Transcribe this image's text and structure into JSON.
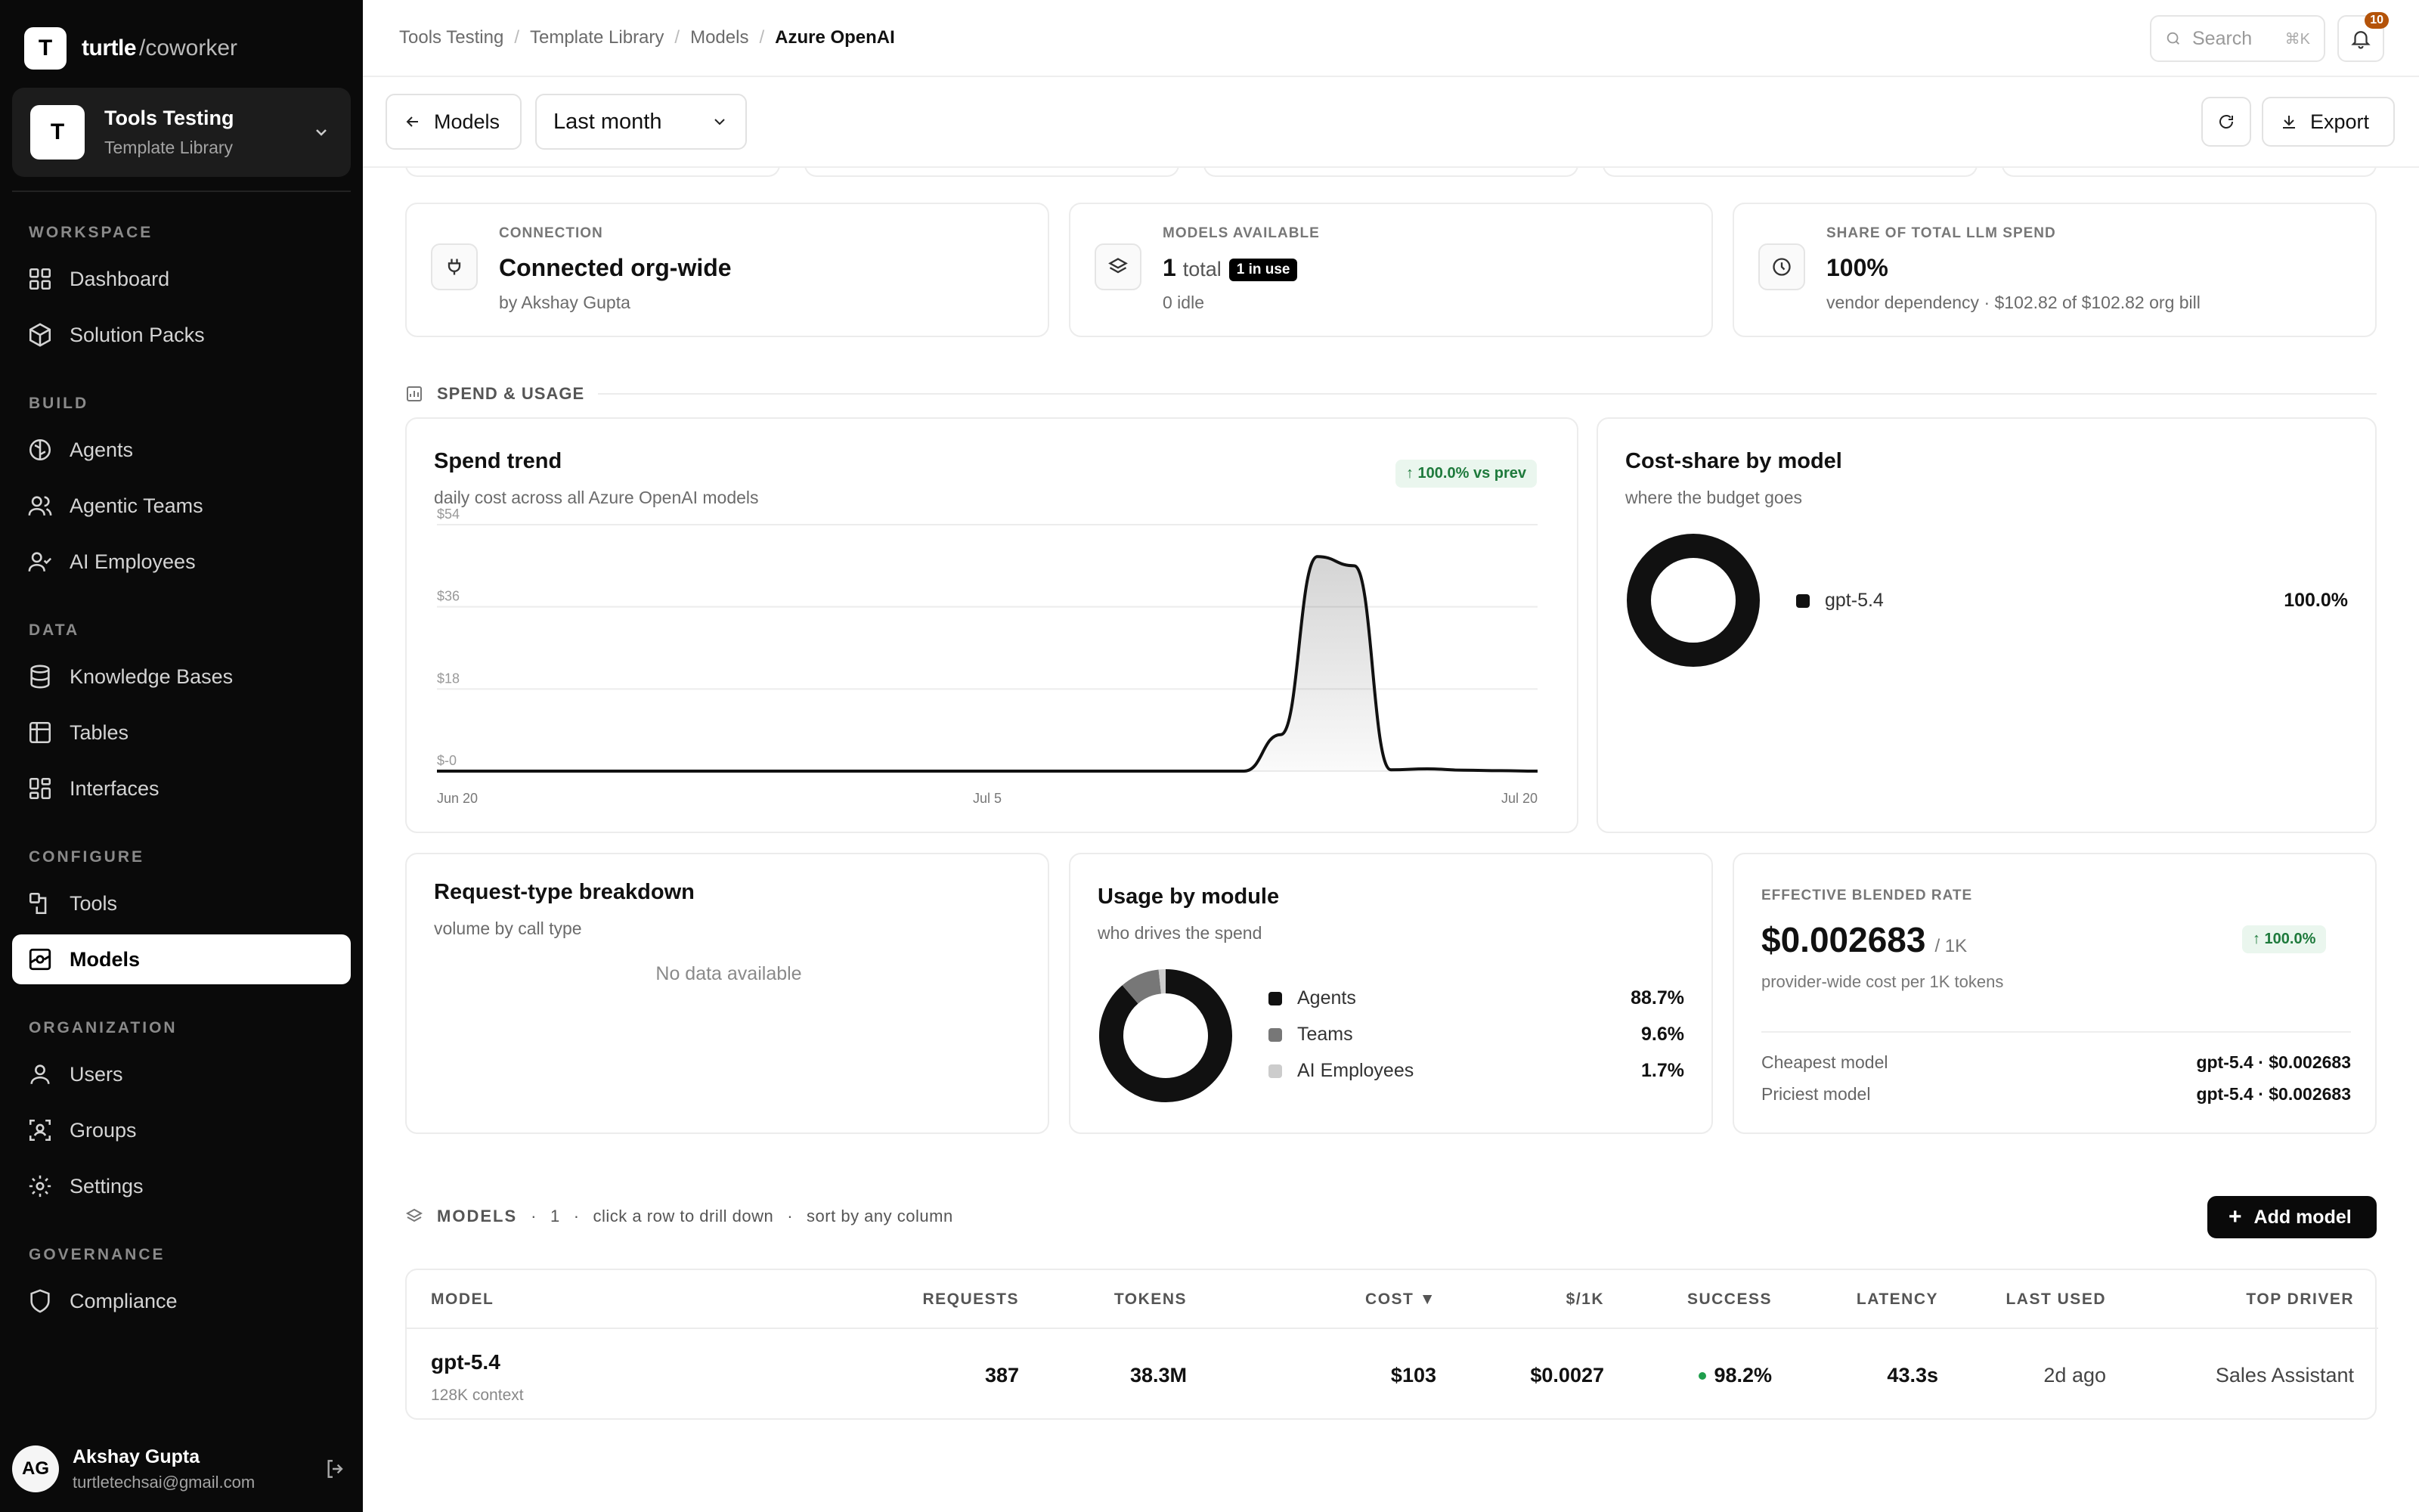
{
  "app": {
    "brand": "turtle",
    "brand_suffix": "/coworker"
  },
  "workspace": {
    "initial": "T",
    "name": "Tools Testing",
    "subtitle": "Template Library"
  },
  "sidebar": {
    "sections": [
      "WORKSPACE",
      "BUILD",
      "DATA",
      "CONFIGURE",
      "ORGANIZATION",
      "GOVERNANCE"
    ],
    "items": [
      {
        "label": "Dashboard"
      },
      {
        "label": "Solution Packs"
      },
      {
        "label": "Agents"
      },
      {
        "label": "Agentic Teams"
      },
      {
        "label": "AI Employees"
      },
      {
        "label": "Knowledge Bases"
      },
      {
        "label": "Tables"
      },
      {
        "label": "Interfaces"
      },
      {
        "label": "Tools"
      },
      {
        "label": "Models"
      },
      {
        "label": "Users"
      },
      {
        "label": "Groups"
      },
      {
        "label": "Settings"
      },
      {
        "label": "Compliance"
      }
    ]
  },
  "user": {
    "initials": "AG",
    "name": "Akshay Gupta",
    "email": "turtletechsai@gmail.com"
  },
  "breadcrumb": [
    "Tools Testing",
    "Template Library",
    "Models",
    "Azure OpenAI"
  ],
  "search": {
    "placeholder": "Search",
    "shortcut": "⌘K"
  },
  "notifications": {
    "count": "10"
  },
  "toolbar": {
    "back_label": "Models",
    "range": "Last month",
    "export_label": "Export"
  },
  "stats": {
    "connection": {
      "label": "CONNECTION",
      "value": "Connected org-wide",
      "sub": "by Akshay Gupta"
    },
    "models": {
      "label": "MODELS AVAILABLE",
      "value": "1",
      "value_suffix": "total",
      "pill": "1 in use",
      "sub": "0 idle"
    },
    "share": {
      "label": "SHARE OF TOTAL LLM SPEND",
      "value": "100%",
      "sub": "vendor dependency · $102.82 of $102.82 org bill"
    }
  },
  "section_spend": "SPEND & USAGE",
  "spend_trend": {
    "title": "Spend trend",
    "subtitle": "daily cost across all Azure OpenAI models",
    "change": "↑ 100.0% vs prev"
  },
  "chart_data": [
    {
      "type": "area",
      "title": "Spend trend",
      "subtitle": "daily cost across all Azure OpenAI models",
      "x_ticks": [
        "Jun 20",
        "Jul 5",
        "Jul 20"
      ],
      "y_ticks": [
        "$54",
        "$36",
        "$18",
        "$-0"
      ],
      "ylim": [
        0,
        54
      ],
      "grid": true,
      "x": [
        0,
        1,
        2,
        3,
        4,
        5,
        6,
        7,
        8,
        9,
        10,
        11,
        12,
        13,
        14,
        15,
        16,
        17,
        18,
        19,
        20,
        21,
        22,
        23,
        24,
        25,
        26,
        27,
        28,
        29,
        30
      ],
      "values": [
        0,
        0,
        0,
        0,
        0,
        0,
        0,
        0,
        0,
        0,
        0,
        0,
        0,
        0,
        0,
        0,
        0,
        0,
        0,
        0,
        0,
        0,
        0,
        8,
        47,
        45,
        0.3,
        0.5,
        0.2,
        0.1,
        0
      ]
    },
    {
      "type": "pie",
      "title": "Cost-share by model",
      "subtitle": "where the budget goes",
      "labels": [
        "gpt-5.4"
      ],
      "values": [
        100.0
      ]
    },
    {
      "type": "pie",
      "title": "Usage by module",
      "subtitle": "who drives the spend",
      "labels": [
        "Agents",
        "Teams",
        "AI Employees"
      ],
      "values": [
        88.7,
        9.6,
        1.7
      ]
    }
  ],
  "cost_share": {
    "title": "Cost-share by model",
    "subtitle": "where the budget goes",
    "items": [
      {
        "label": "gpt-5.4",
        "pct": "100.0%",
        "color": "#111111"
      }
    ]
  },
  "request_type": {
    "title": "Request-type breakdown",
    "subtitle": "volume by call type",
    "empty": "No data available"
  },
  "usage_module": {
    "title": "Usage by module",
    "subtitle": "who drives the spend",
    "items": [
      {
        "label": "Agents",
        "pct": "88.7%",
        "color": "#111111"
      },
      {
        "label": "Teams",
        "pct": "9.6%",
        "color": "#777777"
      },
      {
        "label": "AI Employees",
        "pct": "1.7%",
        "color": "#cccccc"
      }
    ]
  },
  "blended": {
    "label": "EFFECTIVE BLENDED RATE",
    "value": "$0.002683",
    "unit": "/ 1K",
    "change": "↑ 100.0%",
    "sub": "provider-wide cost per 1K tokens",
    "cheapest_label": "Cheapest model",
    "cheapest_value": "gpt-5.4 · $0.002683",
    "priciest_label": "Priciest model",
    "priciest_value": "gpt-5.4 · $0.002683"
  },
  "models_section": {
    "label": "MODELS",
    "count": "1",
    "hint1": "click a row to drill down",
    "hint2": "sort by any column",
    "add_label": "Add model"
  },
  "table": {
    "headers": [
      "MODEL",
      "REQUESTS",
      "TOKENS",
      "COST ▼",
      "$/1K",
      "SUCCESS",
      "LATENCY",
      "LAST USED",
      "TOP DRIVER"
    ],
    "rows": [
      {
        "model": "gpt-5.4",
        "context": "128K context",
        "requests": "387",
        "tokens": "38.3M",
        "cost": "$103",
        "per1k": "$0.0027",
        "success": "98.2%",
        "latency": "43.3s",
        "last_used": "2d ago",
        "top_driver": "Sales Assistant"
      }
    ]
  },
  "colors": {
    "sidebar_bg": "#0a0a0a",
    "accent": "#111111",
    "success": "#1e7a3c",
    "badge": "#b45309"
  }
}
